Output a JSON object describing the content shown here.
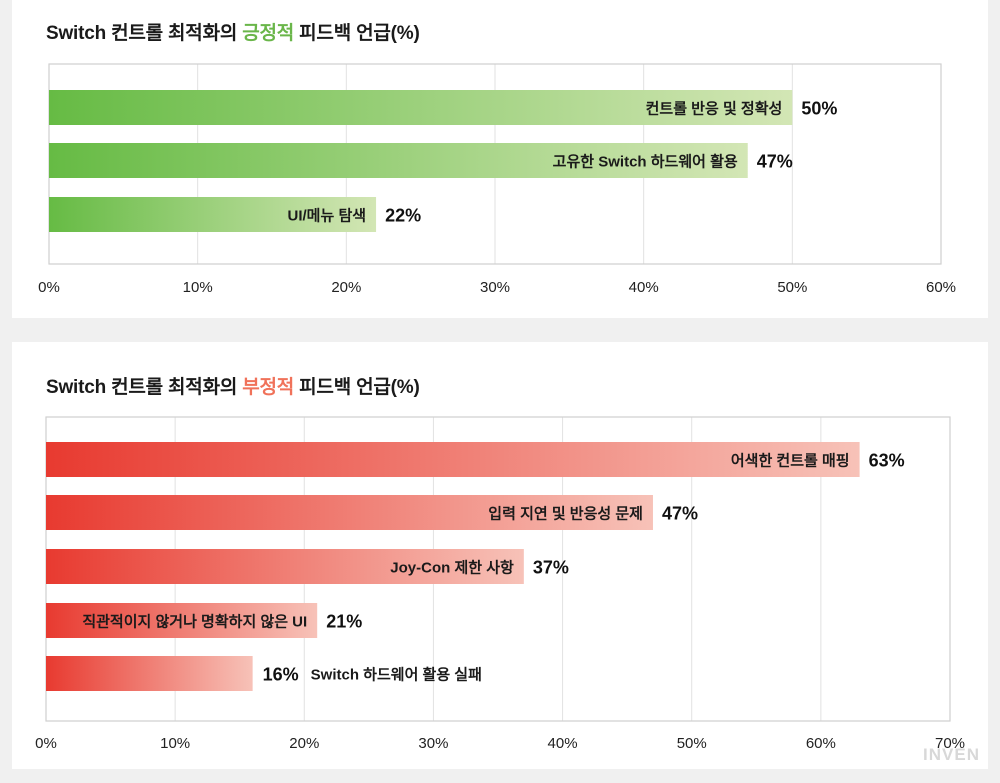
{
  "watermark": "INVEN",
  "chart_data": [
    {
      "type": "bar",
      "orientation": "horizontal",
      "title_prefix": "Switch 컨트롤 최적화의 ",
      "title_highlight": "긍정적",
      "title_suffix": " 피드백 언급(%)",
      "categories": [
        "컨트롤 반응 및 정확성",
        "고유한 Switch 하드웨어 활용",
        "UI/메뉴 탐색"
      ],
      "values": [
        50,
        47,
        22
      ],
      "value_labels": [
        "50%",
        "47%",
        "22%"
      ],
      "xlim": [
        0,
        60
      ],
      "x_ticks": [
        "0%",
        "10%",
        "20%",
        "30%",
        "40%",
        "50%",
        "60%"
      ],
      "grid": true,
      "colors": {
        "start": "#66bb44",
        "end": "#d3e6b5",
        "highlight": "#6ab64a"
      }
    },
    {
      "type": "bar",
      "orientation": "horizontal",
      "title_prefix": "Switch 컨트롤 최적화의 ",
      "title_highlight": "부정적",
      "title_suffix": " 피드백 언급(%)",
      "categories": [
        "어색한 컨트롤 매핑",
        "입력 지연 및 반응성 문제",
        "Joy-Con 제한 사항",
        "직관적이지 않거나 명확하지 않은 UI",
        "Switch 하드웨어 활용 실패"
      ],
      "values": [
        63,
        47,
        37,
        21,
        16
      ],
      "value_labels": [
        "63%",
        "47%",
        "37%",
        "21%",
        "16%"
      ],
      "xlim": [
        0,
        70
      ],
      "x_ticks": [
        "0%",
        "10%",
        "20%",
        "30%",
        "40%",
        "50%",
        "60%",
        "70%"
      ],
      "grid": true,
      "colors": {
        "start": "#e83a30",
        "end": "#f7c2b8",
        "highlight": "#f0725a"
      }
    }
  ]
}
